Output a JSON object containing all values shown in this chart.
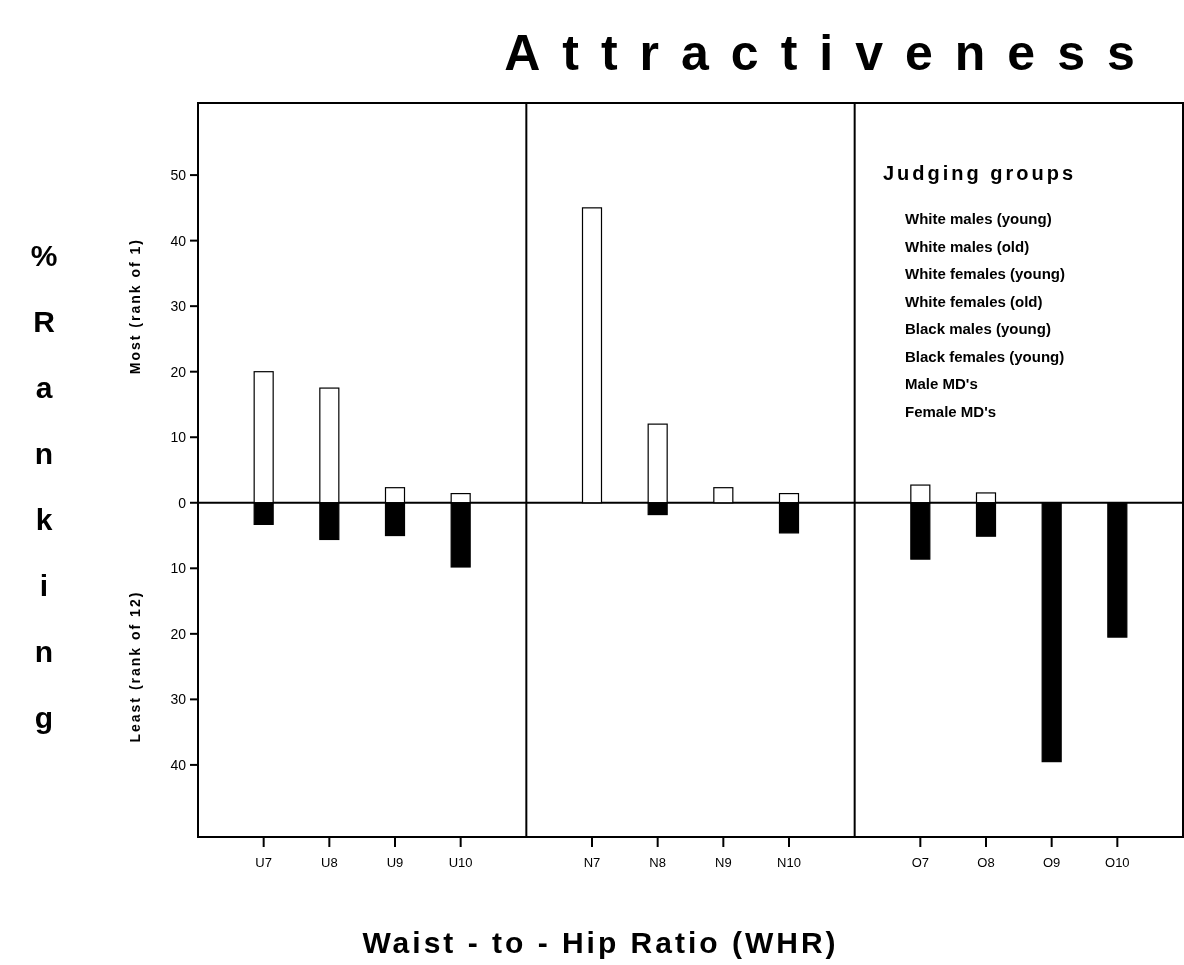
{
  "chart_data": {
    "type": "bar",
    "title": "Attractiveness",
    "xlabel": "Waist - to - Hip Ratio (WHR)",
    "ylabel": "% Ranking",
    "categories": [
      "U7",
      "U8",
      "U9",
      "U10",
      "N7",
      "N8",
      "N9",
      "N10",
      "O7",
      "O8",
      "O9",
      "O10"
    ],
    "series": [
      {
        "color": "#ffffff",
        "values": [
          20,
          17.5,
          2.3,
          1.4,
          45,
          12,
          2.3,
          1.4,
          2.7,
          1.5,
          null,
          null
        ]
      },
      {
        "color": "#000000",
        "values": [
          -3.3,
          -5.6,
          -5,
          -9.8,
          null,
          -1.8,
          null,
          -4.6,
          -8.6,
          -5.1,
          -39.5,
          -20.5
        ]
      }
    ],
    "ylim": [
      -51,
      61
    ],
    "yticks": [
      {
        "value": -40,
        "label": "40"
      },
      {
        "value": -30,
        "label": "30"
      },
      {
        "value": -20,
        "label": "20"
      },
      {
        "value": -10,
        "label": "10"
      },
      0,
      10,
      20,
      30,
      40,
      50
    ],
    "annotations": [
      "Most (rank of 1)",
      "Least (rank of 12)",
      "Judging groups",
      "White males (young)",
      "White males (old)",
      "White females (young)",
      "White females (old)",
      "Black males (young)",
      "Black females (young)",
      "Male MD's",
      "Female MD's"
    ],
    "stacked": true
  }
}
